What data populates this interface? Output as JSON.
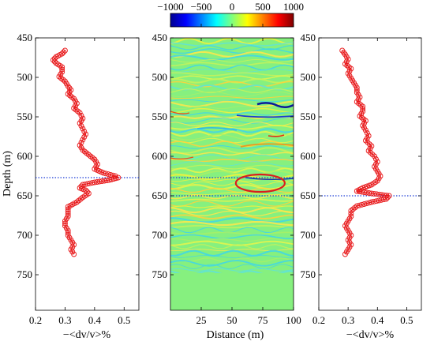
{
  "chart_data": [
    {
      "type": "scatter",
      "panel": "left",
      "xlabel": "−<dv/v>%",
      "ylabel": "Depth (m)",
      "xlim": [
        0.2,
        0.55
      ],
      "ylim": [
        450,
        795
      ],
      "y_inverted": true,
      "x_ticks": [
        "0.2",
        "0.3",
        "0.4",
        "0.5"
      ],
      "y_ticks": [
        "450",
        "500",
        "550",
        "600",
        "650",
        "700",
        "750"
      ],
      "marker": "open-circle",
      "color": "#e8191b",
      "horizontal_line": {
        "depth": 627,
        "style": "dotted",
        "color": "#1f3fd6"
      },
      "series": [
        {
          "values": [
            {
              "x": 0.3,
              "y": 466
            },
            {
              "x": 0.29,
              "y": 470
            },
            {
              "x": 0.27,
              "y": 474
            },
            {
              "x": 0.26,
              "y": 478
            },
            {
              "x": 0.27,
              "y": 482
            },
            {
              "x": 0.29,
              "y": 487
            },
            {
              "x": 0.29,
              "y": 493
            },
            {
              "x": 0.28,
              "y": 499
            },
            {
              "x": 0.3,
              "y": 505
            },
            {
              "x": 0.31,
              "y": 511
            },
            {
              "x": 0.32,
              "y": 516
            },
            {
              "x": 0.31,
              "y": 521
            },
            {
              "x": 0.33,
              "y": 527
            },
            {
              "x": 0.34,
              "y": 533
            },
            {
              "x": 0.33,
              "y": 539
            },
            {
              "x": 0.35,
              "y": 545
            },
            {
              "x": 0.36,
              "y": 552
            },
            {
              "x": 0.35,
              "y": 558
            },
            {
              "x": 0.36,
              "y": 565
            },
            {
              "x": 0.37,
              "y": 572
            },
            {
              "x": 0.36,
              "y": 579
            },
            {
              "x": 0.35,
              "y": 586
            },
            {
              "x": 0.36,
              "y": 592
            },
            {
              "x": 0.38,
              "y": 598
            },
            {
              "x": 0.4,
              "y": 604
            },
            {
              "x": 0.41,
              "y": 610
            },
            {
              "x": 0.4,
              "y": 616
            },
            {
              "x": 0.43,
              "y": 621
            },
            {
              "x": 0.47,
              "y": 625
            },
            {
              "x": 0.48,
              "y": 627
            },
            {
              "x": 0.45,
              "y": 630
            },
            {
              "x": 0.4,
              "y": 633
            },
            {
              "x": 0.36,
              "y": 636
            },
            {
              "x": 0.35,
              "y": 640
            },
            {
              "x": 0.37,
              "y": 643
            },
            {
              "x": 0.38,
              "y": 647
            },
            {
              "x": 0.36,
              "y": 652
            },
            {
              "x": 0.34,
              "y": 658
            },
            {
              "x": 0.31,
              "y": 664
            },
            {
              "x": 0.31,
              "y": 670
            },
            {
              "x": 0.31,
              "y": 676
            },
            {
              "x": 0.3,
              "y": 682
            },
            {
              "x": 0.3,
              "y": 688
            },
            {
              "x": 0.31,
              "y": 694
            },
            {
              "x": 0.31,
              "y": 700
            },
            {
              "x": 0.32,
              "y": 706
            },
            {
              "x": 0.33,
              "y": 712
            },
            {
              "x": 0.32,
              "y": 718
            },
            {
              "x": 0.33,
              "y": 724
            }
          ]
        }
      ]
    },
    {
      "type": "heatmap",
      "panel": "center",
      "xlabel": "Distance (m)",
      "xlim": [
        0,
        100
      ],
      "ylim": [
        450,
        795
      ],
      "y_inverted": true,
      "x_ticks": [
        "25",
        "50",
        "75",
        "100"
      ],
      "y_ticks": [
        "450",
        "500",
        "550",
        "600",
        "650",
        "700",
        "750"
      ],
      "colorbar": {
        "range": [
          -1000,
          1000
        ],
        "ticks": [
          "−1000",
          "−500",
          "0",
          "500",
          "1000"
        ],
        "colormap": "jet"
      },
      "horizontal_lines": [
        {
          "depth": 627,
          "style": "dotted",
          "color": "#1f3fd6"
        },
        {
          "depth": 650,
          "style": "dotted",
          "color": "#1f3fd6"
        }
      ],
      "highlight_ellipse": {
        "center_x": 73,
        "center_depth": 634,
        "color": "#d91e1e"
      },
      "notes": "Layered wavy reflections across the section; dark blue/red anomaly near distance 80-100 m at depth ~540 m; uniform zero field below ~745 m."
    },
    {
      "type": "scatter",
      "panel": "right",
      "xlabel": "−<dv/v>%",
      "xlim": [
        0.2,
        0.55
      ],
      "ylim": [
        450,
        795
      ],
      "y_inverted": true,
      "x_ticks": [
        "0.2",
        "0.3",
        "0.4",
        "0.5"
      ],
      "y_ticks": [
        "450",
        "500",
        "550",
        "600",
        "650",
        "700",
        "750"
      ],
      "marker": "open-circle",
      "color": "#e8191b",
      "horizontal_line": {
        "depth": 650,
        "style": "dotted",
        "color": "#1f3fd6"
      },
      "series": [
        {
          "values": [
            {
              "x": 0.28,
              "y": 466
            },
            {
              "x": 0.29,
              "y": 471
            },
            {
              "x": 0.3,
              "y": 477
            },
            {
              "x": 0.29,
              "y": 483
            },
            {
              "x": 0.31,
              "y": 489
            },
            {
              "x": 0.3,
              "y": 495
            },
            {
              "x": 0.31,
              "y": 501
            },
            {
              "x": 0.32,
              "y": 507
            },
            {
              "x": 0.33,
              "y": 513
            },
            {
              "x": 0.33,
              "y": 519
            },
            {
              "x": 0.34,
              "y": 525
            },
            {
              "x": 0.33,
              "y": 531
            },
            {
              "x": 0.35,
              "y": 537
            },
            {
              "x": 0.35,
              "y": 543
            },
            {
              "x": 0.34,
              "y": 549
            },
            {
              "x": 0.36,
              "y": 555
            },
            {
              "x": 0.35,
              "y": 561
            },
            {
              "x": 0.36,
              "y": 567
            },
            {
              "x": 0.37,
              "y": 574
            },
            {
              "x": 0.36,
              "y": 580
            },
            {
              "x": 0.38,
              "y": 587
            },
            {
              "x": 0.37,
              "y": 593
            },
            {
              "x": 0.39,
              "y": 600
            },
            {
              "x": 0.4,
              "y": 607
            },
            {
              "x": 0.39,
              "y": 613
            },
            {
              "x": 0.4,
              "y": 619
            },
            {
              "x": 0.41,
              "y": 625
            },
            {
              "x": 0.4,
              "y": 631
            },
            {
              "x": 0.38,
              "y": 636
            },
            {
              "x": 0.35,
              "y": 640
            },
            {
              "x": 0.33,
              "y": 644
            },
            {
              "x": 0.38,
              "y": 647
            },
            {
              "x": 0.44,
              "y": 650
            },
            {
              "x": 0.43,
              "y": 654
            },
            {
              "x": 0.38,
              "y": 658
            },
            {
              "x": 0.33,
              "y": 663
            },
            {
              "x": 0.31,
              "y": 669
            },
            {
              "x": 0.31,
              "y": 676
            },
            {
              "x": 0.3,
              "y": 682
            },
            {
              "x": 0.29,
              "y": 688
            },
            {
              "x": 0.3,
              "y": 694
            },
            {
              "x": 0.31,
              "y": 700
            },
            {
              "x": 0.3,
              "y": 706
            },
            {
              "x": 0.31,
              "y": 712
            },
            {
              "x": 0.3,
              "y": 718
            },
            {
              "x": 0.29,
              "y": 724
            }
          ]
        }
      ]
    }
  ]
}
